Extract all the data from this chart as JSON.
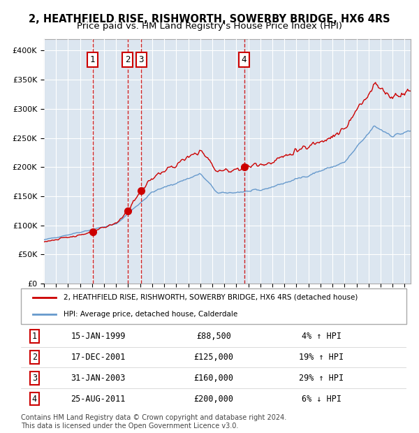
{
  "title1": "2, HEATHFIELD RISE, RISHWORTH, SOWERBY BRIDGE, HX6 4RS",
  "title2": "Price paid vs. HM Land Registry's House Price Index (HPI)",
  "legend_line1": "2, HEATHFIELD RISE, RISHWORTH, SOWERBY BRIDGE, HX6 4RS (detached house)",
  "legend_line2": "HPI: Average price, detached house, Calderdale",
  "transactions": [
    {
      "num": 1,
      "date": "15-JAN-1999",
      "price": 88500,
      "pct": "4%",
      "dir": "↑"
    },
    {
      "num": 2,
      "date": "17-DEC-2001",
      "price": 125000,
      "pct": "19%",
      "dir": "↑"
    },
    {
      "num": 3,
      "date": "31-JAN-2003",
      "price": 160000,
      "pct": "29%",
      "dir": "↑"
    },
    {
      "num": 4,
      "date": "25-AUG-2011",
      "price": 200000,
      "pct": "6%",
      "dir": "↓"
    }
  ],
  "transaction_dates_decimal": [
    1999.04,
    2001.96,
    2003.08,
    2011.65
  ],
  "transaction_prices": [
    88500,
    125000,
    160000,
    200000
  ],
  "red_color": "#cc0000",
  "blue_color": "#6699cc",
  "bg_color": "#dce6f0",
  "grid_color": "#ffffff",
  "footer": "Contains HM Land Registry data © Crown copyright and database right 2024.\nThis data is licensed under the Open Government Licence v3.0.",
  "ylim": [
    0,
    420000
  ],
  "xlim_start": 1995.0,
  "xlim_end": 2025.5
}
